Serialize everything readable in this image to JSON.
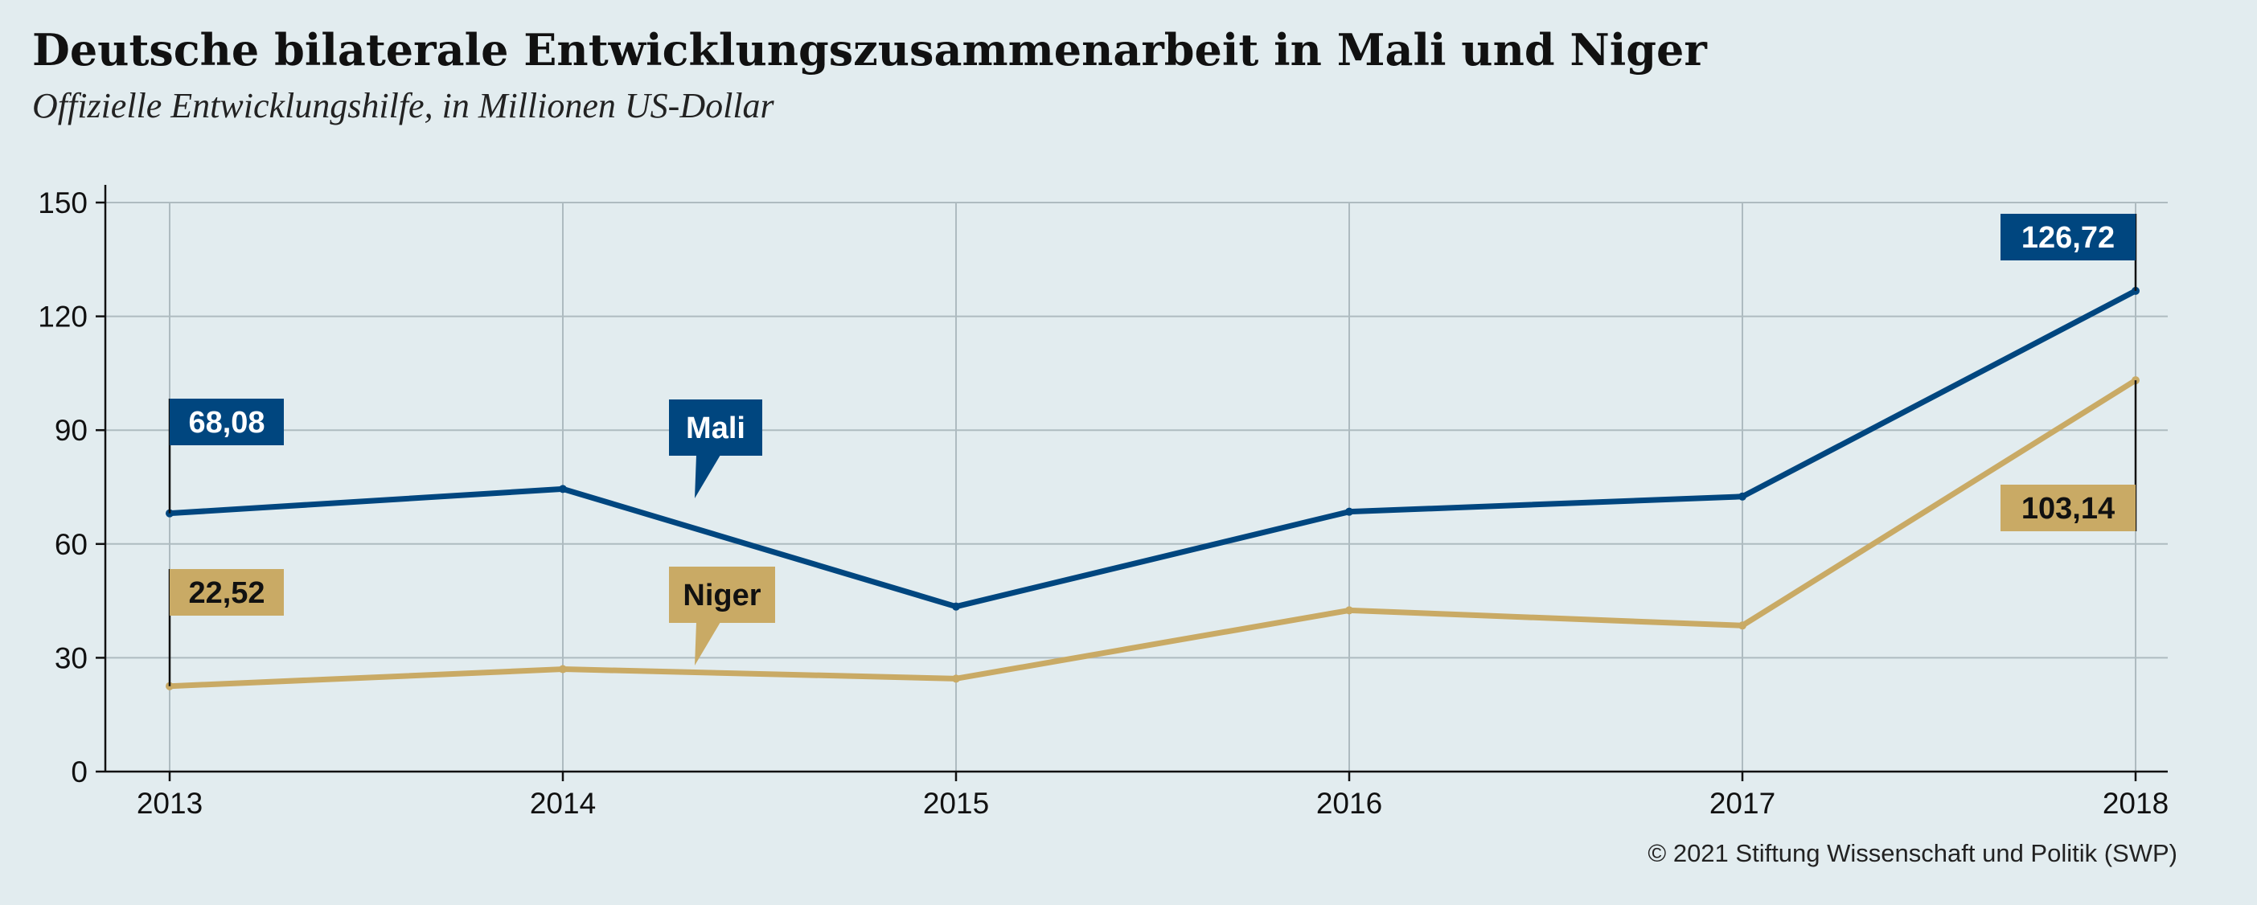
{
  "title": "Deutsche bilaterale Entwicklungszusammenarbeit in Mali und Niger",
  "subtitle": "Offizielle Entwicklungshilfe, in Millionen US-Dollar",
  "copyright": "© 2021 Stiftung Wissenschaft und Politik (SWP)",
  "colors": {
    "mali": "#00467f",
    "niger": "#c9aa65",
    "background": "#e2ecef"
  },
  "chart_data": {
    "type": "line",
    "title": "Deutsche bilaterale Entwicklungszusammenarbeit in Mali und Niger",
    "subtitle": "Offizielle Entwicklungshilfe, in Millionen US-Dollar",
    "x": [
      2013,
      2014,
      2015,
      2016,
      2017,
      2018
    ],
    "x_tick_labels": [
      "2013",
      "2014",
      "2015",
      "2016",
      "2017",
      "2018"
    ],
    "y_ticks": [
      0,
      30,
      60,
      90,
      120,
      150
    ],
    "y_tick_labels": [
      "0",
      "30",
      "60",
      "90",
      "120",
      "150"
    ],
    "ylim": [
      0,
      150
    ],
    "grid": true,
    "series": [
      {
        "name": "Mali",
        "color": "#00467f",
        "values": [
          68.08,
          74.5,
          43.5,
          68.5,
          72.5,
          126.72
        ],
        "labels": {
          "first": "68,08",
          "last": "126,72"
        }
      },
      {
        "name": "Niger",
        "color": "#c9aa65",
        "values": [
          22.52,
          27.0,
          24.5,
          42.5,
          38.5,
          103.14
        ],
        "labels": {
          "first": "22,52",
          "last": "103,14"
        }
      }
    ]
  }
}
